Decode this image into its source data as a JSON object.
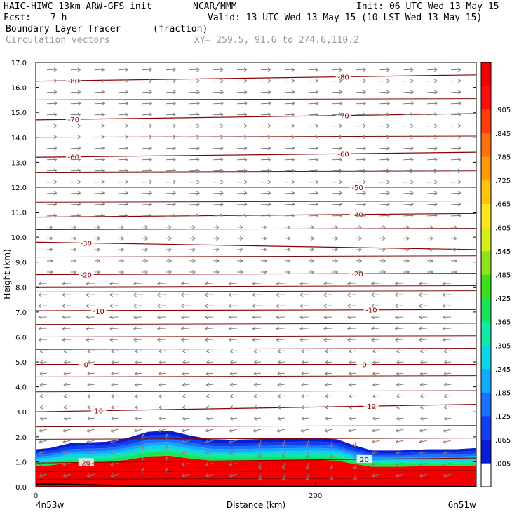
{
  "header": {
    "model": "HAIC-HIWC 13km ARW-GFS init",
    "org": "NCAR/MMM",
    "init": "Init: 06 UTC Wed 13 May 15",
    "fcst_label": "Fcst:",
    "fcst_value": "7 h",
    "valid": "Valid: 13 UTC Wed 13 May 15 (10 LST Wed 13 May 15)",
    "field": "Boundary Layer Tracer",
    "units": "(fraction)",
    "vectors": "Circulation vectors",
    "xy": "XY= 259.5, 91.6 to 274.6,110.2"
  },
  "chart_data": {
    "type": "heatmap",
    "title": "Boundary Layer Tracer (fraction)",
    "xlabel": "Distance (km)",
    "ylabel": "Height (km)",
    "xlim": [
      0,
      315
    ],
    "ylim": [
      0,
      17
    ],
    "x_ticks": [
      0,
      200
    ],
    "x_tick_labels": [
      "0",
      "200"
    ],
    "x_end_labels": [
      "4n53w",
      "6n51w"
    ],
    "y_ticks": [
      0.0,
      1.0,
      2.0,
      3.0,
      4.0,
      5.0,
      6.0,
      7.0,
      8.0,
      9.0,
      10.0,
      11.0,
      12.0,
      13.0,
      14.0,
      15.0,
      16.0,
      17.0
    ],
    "y_tick_labels": [
      "0.0",
      "1.0",
      "2.0",
      "3.0",
      "4.0",
      "5.0",
      "6.0",
      "7.0",
      "8.0",
      "9.0",
      "10.0",
      "11.0",
      "12.0",
      "13.0",
      "14.0",
      "15.0",
      "16.0",
      "17.0"
    ],
    "colorbar": {
      "labels": [
        ".005",
        ".065",
        ".125",
        ".185",
        ".245",
        ".305",
        ".365",
        ".425",
        ".485",
        ".545",
        ".605",
        ".665",
        ".725",
        ".785",
        ".845",
        ".905",
        "–"
      ],
      "colors": [
        "#ffffff",
        "#0a1bd4",
        "#0f3fee",
        "#1a70ff",
        "#14a8ff",
        "#0fd4e8",
        "#13e8a8",
        "#18e35a",
        "#3ce01a",
        "#8ee41a",
        "#d8ee1a",
        "#ffe51a",
        "#ffc30f",
        "#ff9a0a",
        "#ff700a",
        "#ff3d0a",
        "#ff0d0d",
        "#f40000"
      ]
    },
    "tracer_top_km": {
      "x": [
        0,
        10,
        25,
        50,
        65,
        80,
        95,
        110,
        125,
        140,
        170,
        200,
        215,
        225,
        240,
        260,
        280,
        300,
        315
      ],
      "y": [
        1.5,
        1.55,
        1.75,
        1.8,
        1.95,
        2.2,
        2.25,
        2.05,
        1.9,
        1.88,
        1.92,
        1.95,
        1.9,
        1.7,
        1.45,
        1.45,
        1.5,
        1.5,
        1.55
      ]
    },
    "temperature_contours": [
      {
        "label": "-80",
        "y0": 16.25,
        "y1": 16.5,
        "labels_x": [
          27,
          220
        ]
      },
      {
        "label": "-70",
        "y0": 14.7,
        "y1": 14.95,
        "labels_x": [
          27,
          220
        ]
      },
      {
        "label": "-60",
        "y0": 13.2,
        "y1": 13.4,
        "labels_x": [
          27,
          220
        ]
      },
      {
        "label": "-50",
        "y0": 12.0,
        "y1": 12.0,
        "labels_x": [
          230
        ]
      },
      {
        "label": "-40",
        "y0": 10.8,
        "y1": 10.95,
        "labels_x": [
          230
        ]
      },
      {
        "label": "-30",
        "y0": 9.8,
        "y1": 9.5,
        "labels_x": [
          36
        ]
      },
      {
        "label": "-20",
        "y0": 8.5,
        "y1": 8.55,
        "labels_x": [
          36,
          230
        ]
      },
      {
        "label": "-10",
        "y0": 7.05,
        "y1": 7.1,
        "labels_x": [
          45,
          240
        ]
      },
      {
        "label": "0",
        "y0": 4.9,
        "y1": 4.9,
        "labels_x": [
          36,
          235
        ]
      },
      {
        "label": "10",
        "y0": 3.0,
        "y1": 3.3,
        "labels_x": [
          45,
          240
        ]
      },
      {
        "label": "20",
        "y0": 0.95,
        "y1": 1.15,
        "labels_x": [
          36,
          235
        ]
      }
    ],
    "extra_contour_levels_km": [
      15.5,
      14.0,
      12.6,
      11.4,
      10.3,
      9.2,
      8.0,
      7.8,
      6.5,
      6.0,
      5.5,
      4.4,
      3.8,
      2.4,
      1.9,
      0.6,
      0.3
    ]
  }
}
